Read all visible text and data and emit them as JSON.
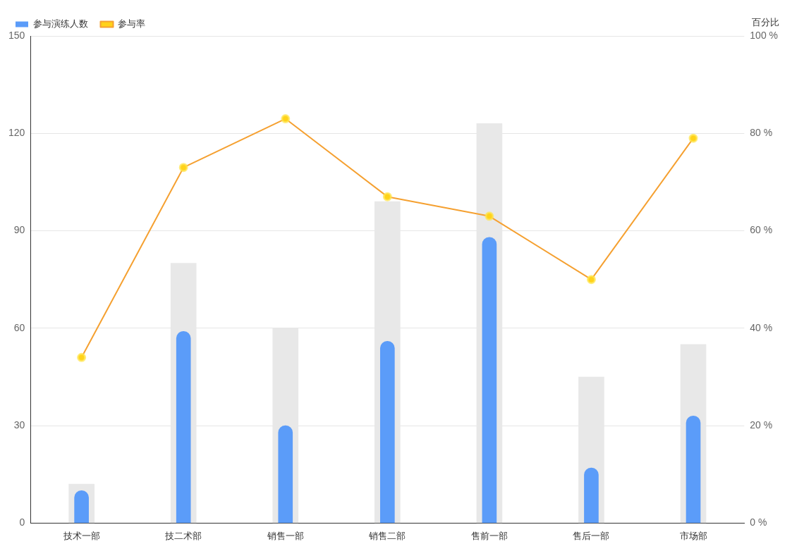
{
  "chart_data": {
    "type": "bar",
    "y2label": "百分比",
    "categories": [
      "技术一部",
      "技二术部",
      "销售一部",
      "销售二部",
      "售前一部",
      "售后一部",
      "市场部"
    ],
    "series": [
      {
        "color": "#e8e8e8",
        "values": [
          12,
          80,
          60,
          99,
          123,
          45,
          55
        ]
      },
      {
        "name": "参与演练人数",
        "color": "#5b9cf9",
        "values": [
          10,
          59,
          30,
          56,
          88,
          17,
          33
        ]
      },
      {
        "name": "参与率",
        "type": "line",
        "axis": "y2",
        "color": "#f5a030",
        "values": [
          34,
          73,
          83,
          67,
          63,
          50,
          79
        ]
      }
    ],
    "ylim": [
      0,
      150
    ],
    "yticks": [
      0,
      30,
      60,
      90,
      120,
      150
    ],
    "y2lim": [
      0,
      100
    ],
    "y2ticks": [
      {
        "value": 0,
        "label": "0 %"
      },
      {
        "value": 20,
        "label": "20 %"
      },
      {
        "value": 40,
        "label": "40 %"
      },
      {
        "value": 60,
        "label": "60 %"
      },
      {
        "value": 80,
        "label": "80 %"
      },
      {
        "value": 100,
        "label": "100 %"
      }
    ],
    "grid": "y",
    "legend": "top left",
    "marker": "circle"
  }
}
